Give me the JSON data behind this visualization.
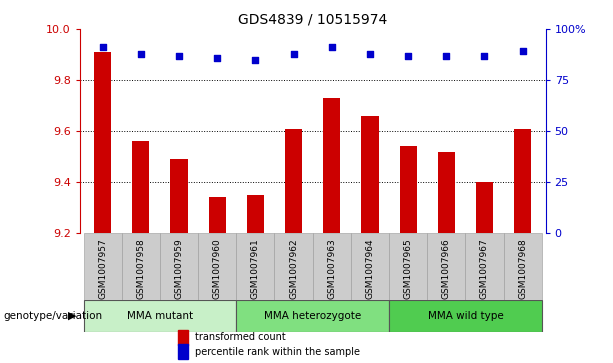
{
  "title": "GDS4839 / 10515974",
  "samples": [
    "GSM1007957",
    "GSM1007958",
    "GSM1007959",
    "GSM1007960",
    "GSM1007961",
    "GSM1007962",
    "GSM1007963",
    "GSM1007964",
    "GSM1007965",
    "GSM1007966",
    "GSM1007967",
    "GSM1007968"
  ],
  "bar_values": [
    9.91,
    9.56,
    9.49,
    9.34,
    9.35,
    9.61,
    9.73,
    9.66,
    9.54,
    9.52,
    9.4,
    9.61
  ],
  "dot_values": [
    91,
    88,
    87,
    86,
    85,
    88,
    91,
    88,
    87,
    87,
    87,
    89
  ],
  "ylim_left": [
    9.2,
    10.0
  ],
  "ylim_right": [
    0,
    100
  ],
  "yticks_left": [
    9.2,
    9.4,
    9.6,
    9.8,
    10.0
  ],
  "yticks_right": [
    0,
    25,
    50,
    75,
    100
  ],
  "bar_color": "#cc0000",
  "dot_color": "#0000cc",
  "grid_color": "#000000",
  "bg_color_plot": "#ffffff",
  "bg_color_xticklabels": "#cccccc",
  "groups": [
    {
      "label": "MMA mutant",
      "start": 0,
      "end": 3,
      "color": "#c8f0c8"
    },
    {
      "label": "MMA heterozygote",
      "start": 4,
      "end": 7,
      "color": "#80e080"
    },
    {
      "label": "MMA wild type",
      "start": 8,
      "end": 11,
      "color": "#50cc50"
    }
  ],
  "legend_items": [
    {
      "label": "transformed count",
      "color": "#cc0000"
    },
    {
      "label": "percentile rank within the sample",
      "color": "#0000cc"
    }
  ],
  "xlabel_genotype": "genotype/variation",
  "ylabel_left_color": "#cc0000",
  "ylabel_right_color": "#0000cc"
}
